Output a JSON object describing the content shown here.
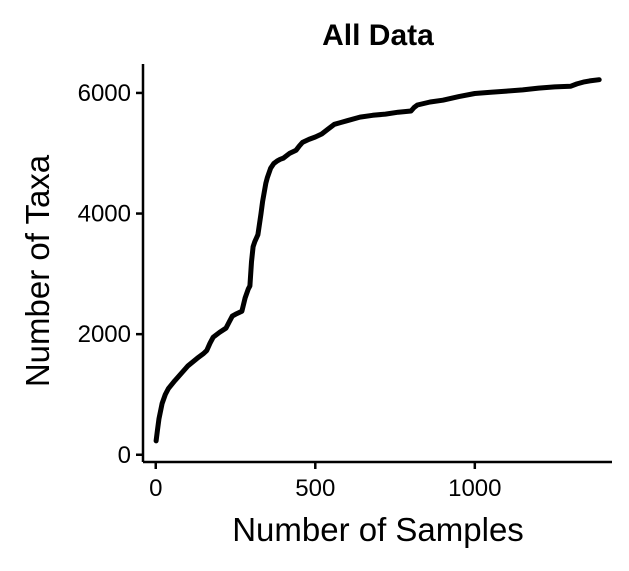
{
  "chart_data": {
    "type": "line",
    "title": "All Data",
    "xlabel": "Number of Samples",
    "ylabel": "Number of Taxa",
    "xlim": [
      -40,
      1430
    ],
    "ylim": [
      -120,
      6480
    ],
    "xticks": [
      0,
      500,
      1000
    ],
    "xtick_labels": [
      "0",
      "500",
      "1000"
    ],
    "yticks": [
      0,
      2000,
      4000,
      6000
    ],
    "ytick_labels": [
      "0",
      "2000",
      "4000",
      "6000"
    ],
    "grid": false,
    "legend": "none",
    "series": [
      {
        "color": "#000000",
        "x": [
          1,
          5,
          10,
          20,
          30,
          40,
          60,
          80,
          100,
          130,
          150,
          160,
          170,
          180,
          200,
          220,
          230,
          240,
          250,
          270,
          280,
          290,
          295,
          300,
          305,
          310,
          320,
          330,
          335,
          340,
          345,
          350,
          360,
          370,
          380,
          390,
          400,
          420,
          440,
          450,
          460,
          480,
          500,
          520,
          540,
          560,
          580,
          600,
          640,
          680,
          720,
          760,
          800,
          810,
          820,
          860,
          900,
          950,
          1000,
          1050,
          1100,
          1150,
          1200,
          1250,
          1300,
          1320,
          1340,
          1360,
          1390
        ],
        "y": [
          230,
          400,
          600,
          850,
          1000,
          1100,
          1230,
          1350,
          1470,
          1600,
          1680,
          1730,
          1850,
          1950,
          2030,
          2100,
          2200,
          2300,
          2330,
          2380,
          2600,
          2750,
          2800,
          3200,
          3450,
          3530,
          3650,
          4000,
          4200,
          4350,
          4500,
          4600,
          4750,
          4830,
          4870,
          4900,
          4920,
          5000,
          5050,
          5120,
          5180,
          5230,
          5270,
          5320,
          5400,
          5480,
          5510,
          5540,
          5600,
          5630,
          5650,
          5680,
          5700,
          5760,
          5800,
          5850,
          5880,
          5940,
          5990,
          6010,
          6030,
          6050,
          6080,
          6100,
          6110,
          6150,
          6180,
          6200,
          6220
        ]
      }
    ]
  }
}
